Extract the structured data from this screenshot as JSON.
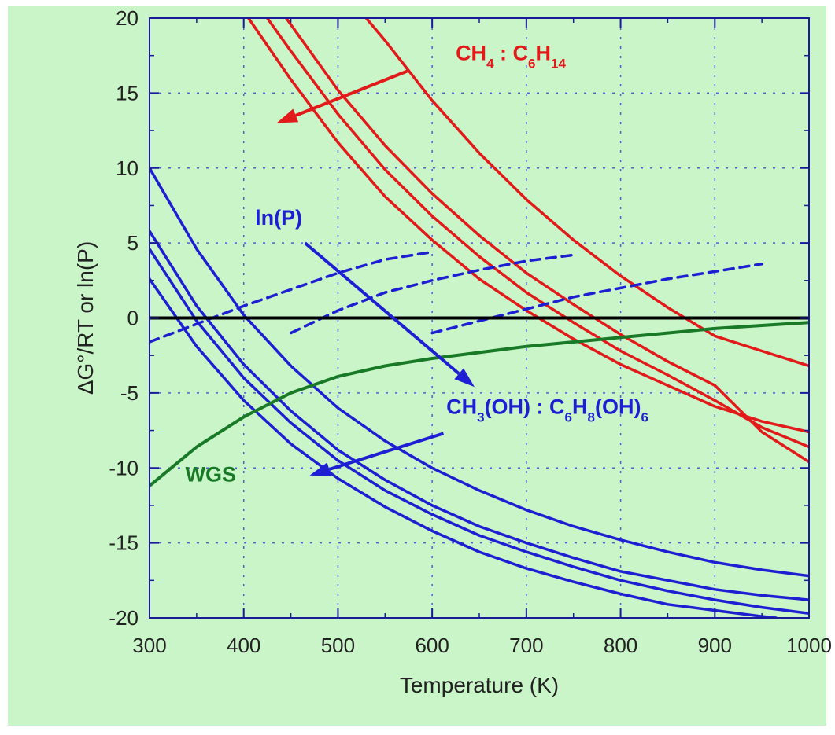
{
  "colors": {
    "background": "#c9f5c9",
    "plot_bg": "#c9f5c9",
    "red": "#e21a1a",
    "blue": "#1e1ed2",
    "green": "#187a26",
    "black": "#000000",
    "grid": "#2a2ad0"
  },
  "chart_data": {
    "type": "line",
    "title": "",
    "xlabel": "Temperature (K)",
    "ylabel": "ΔG°/RT or ln(P)",
    "xlim": [
      300,
      1000
    ],
    "ylim": [
      -20,
      20
    ],
    "xticks": [
      300,
      400,
      500,
      600,
      700,
      800,
      900,
      1000
    ],
    "xtick_labels": [
      "300",
      "400",
      "500",
      "600",
      "700",
      "800",
      "900",
      "1000"
    ],
    "yticks": [
      20,
      15,
      10,
      5,
      0,
      -5,
      -10,
      -15,
      -20
    ],
    "ytick_labels": [
      "20",
      "15",
      "10",
      "5",
      "0",
      "-5",
      "-10",
      "-15",
      "-20"
    ],
    "grid": true,
    "series": [
      {
        "group": "red",
        "x": [
          405,
          450,
          500,
          550,
          600,
          650,
          700,
          750,
          800,
          850,
          900,
          950,
          1000
        ],
        "y": [
          20,
          15.9,
          11.7,
          8.1,
          5.2,
          2.6,
          0.5,
          -1.4,
          -3.1,
          -4.5,
          -5.9,
          -6.9,
          -7.6
        ]
      },
      {
        "group": "red",
        "x": [
          425,
          450,
          500,
          550,
          600,
          650,
          700,
          750,
          800,
          850,
          900,
          950,
          1000
        ],
        "y": [
          20,
          17.8,
          13.6,
          9.9,
          6.8,
          4.1,
          1.7,
          -0.3,
          -2.2,
          -3.8,
          -5.5,
          -7.3,
          -8.6
        ]
      },
      {
        "group": "red",
        "x": [
          445,
          500,
          550,
          600,
          650,
          700,
          750,
          800,
          850,
          900,
          950,
          1000
        ],
        "y": [
          20,
          15.2,
          11.5,
          8.3,
          5.5,
          3.0,
          0.9,
          -1.1,
          -2.9,
          -4.5,
          -7.6,
          -9.6
        ]
      },
      {
        "group": "red",
        "x": [
          530,
          550,
          600,
          650,
          700,
          750,
          800,
          850,
          900,
          950,
          1000
        ],
        "y": [
          20,
          18.5,
          14.5,
          11.0,
          7.9,
          5.2,
          2.8,
          0.7,
          -1.2,
          -2.2,
          -3.2
        ]
      },
      {
        "group": "blue",
        "x": [
          300,
          350,
          400,
          450,
          500,
          550,
          600,
          650,
          700,
          750,
          800,
          850,
          900,
          950,
          1000
        ],
        "y": [
          10,
          4.6,
          0.2,
          -3.2,
          -6.0,
          -8.2,
          -10.0,
          -11.5,
          -12.8,
          -13.9,
          -14.8,
          -15.6,
          -16.3,
          -16.8,
          -17.2
        ]
      },
      {
        "group": "blue",
        "x": [
          300,
          350,
          400,
          450,
          500,
          550,
          600,
          650,
          700,
          750,
          800,
          850,
          900,
          950,
          1000
        ],
        "y": [
          5.8,
          0.8,
          -3.1,
          -6.2,
          -8.8,
          -10.8,
          -12.5,
          -13.9,
          -15.0,
          -16.0,
          -16.9,
          -17.5,
          -18.1,
          -18.5,
          -18.8
        ]
      },
      {
        "group": "blue",
        "x": [
          300,
          350,
          400,
          450,
          500,
          550,
          600,
          650,
          700,
          750,
          800,
          850,
          900,
          950,
          1000
        ],
        "y": [
          4.6,
          -0.2,
          -4.0,
          -7.0,
          -9.5,
          -11.5,
          -13.1,
          -14.5,
          -15.6,
          -16.6,
          -17.5,
          -18.2,
          -18.8,
          -19.3,
          -19.7
        ]
      },
      {
        "group": "blue",
        "x": [
          300,
          350,
          400,
          450,
          500,
          550,
          600,
          650,
          700,
          750,
          800,
          850,
          900,
          950,
          965
        ],
        "y": [
          2.6,
          -1.9,
          -5.5,
          -8.4,
          -10.7,
          -12.6,
          -14.2,
          -15.6,
          -16.7,
          -17.6,
          -18.4,
          -19.1,
          -19.5,
          -19.9,
          -20.0
        ]
      },
      {
        "group": "blue-dashed",
        "x": [
          300,
          350,
          400,
          450,
          500,
          550,
          600
        ],
        "y": [
          -1.6,
          -0.4,
          0.8,
          1.9,
          3.0,
          3.9,
          4.4
        ]
      },
      {
        "group": "blue-dashed",
        "x": [
          450,
          500,
          550,
          600,
          650,
          700,
          750
        ],
        "y": [
          -1.0,
          0.5,
          1.7,
          2.5,
          3.2,
          3.8,
          4.2
        ]
      },
      {
        "group": "blue-dashed",
        "x": [
          600,
          650,
          700,
          750,
          800,
          850,
          900,
          950
        ],
        "y": [
          -1.0,
          -0.2,
          0.6,
          1.4,
          2.0,
          2.6,
          3.1,
          3.6
        ]
      },
      {
        "group": "green",
        "x": [
          300,
          350,
          400,
          450,
          500,
          550,
          600,
          650,
          700,
          750,
          800,
          850,
          900,
          950,
          1000
        ],
        "y": [
          -11.2,
          -8.6,
          -6.6,
          -5.0,
          -3.9,
          -3.2,
          -2.7,
          -2.3,
          -1.9,
          -1.6,
          -1.3,
          -1.0,
          -0.7,
          -0.5,
          -0.3
        ]
      },
      {
        "group": "black",
        "x": [
          300,
          1000
        ],
        "y": [
          0,
          0
        ]
      }
    ],
    "arrows": [
      {
        "color": "red",
        "from": [
          575,
          16.5
        ],
        "to": [
          435,
          13.0
        ]
      },
      {
        "color": "blue",
        "from": [
          465,
          5.0
        ],
        "to": [
          645,
          -4.6
        ]
      },
      {
        "color": "blue",
        "from": [
          612,
          -7.7
        ],
        "to": [
          470,
          -10.5
        ]
      }
    ],
    "annotations": [
      {
        "color": "red",
        "x": 625,
        "y": 17.2,
        "parts": [
          [
            "CH",
            "n"
          ],
          [
            "4",
            "s"
          ],
          [
            " : C",
            "n"
          ],
          [
            "6",
            "s"
          ],
          [
            "H",
            "n"
          ],
          [
            "14",
            "s"
          ]
        ]
      },
      {
        "color": "blue",
        "x": 412,
        "y": 6.2,
        "parts": [
          [
            "ln(P)",
            "n"
          ]
        ]
      },
      {
        "color": "blue",
        "x": 615,
        "y": -6.4,
        "parts": [
          [
            "CH",
            "n"
          ],
          [
            "3",
            "s"
          ],
          [
            "(OH) : C",
            "n"
          ],
          [
            "6",
            "s"
          ],
          [
            "H",
            "n"
          ],
          [
            "8",
            "s"
          ],
          [
            "(OH)",
            "n"
          ],
          [
            "6",
            "s"
          ]
        ]
      },
      {
        "color": "green",
        "x": 338,
        "y": -10.9,
        "parts": [
          [
            "WGS",
            "n"
          ]
        ]
      }
    ]
  }
}
